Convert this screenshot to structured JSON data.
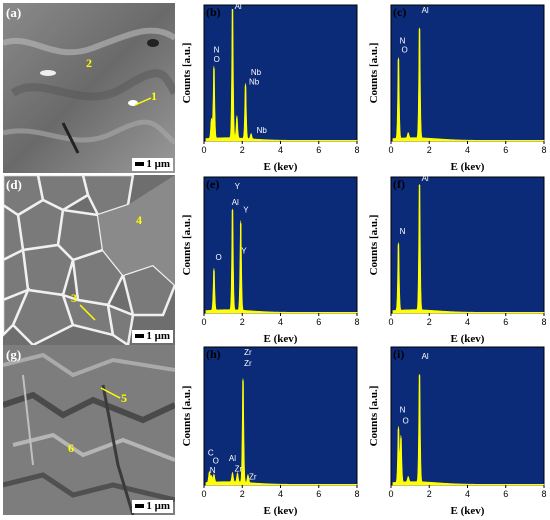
{
  "sem_panels": [
    {
      "label": "(a)",
      "scale": "1 μm",
      "markers": [
        {
          "text": "1"
        },
        {
          "text": "2"
        }
      ]
    },
    {
      "label": "(d)",
      "scale": "1 μm",
      "markers": [
        {
          "text": "3"
        },
        {
          "text": "4"
        }
      ]
    },
    {
      "label": "(g)",
      "scale": "1 μm",
      "markers": [
        {
          "text": "5"
        },
        {
          "text": "6"
        }
      ]
    }
  ],
  "colors": {
    "plot_bg": "#0b2a78",
    "spectrum": "#ffff00",
    "peak_label": "#ffffff"
  },
  "chart_data": [
    {
      "type": "area",
      "label": "(b)",
      "xlabel": "E (kev)",
      "ylabel": "Counts [a.u.]",
      "xlim": [
        0,
        8
      ],
      "ylim": [
        0,
        1
      ],
      "xticks": [
        0,
        2,
        4,
        6,
        8
      ],
      "peaks": [
        {
          "x": 0.39,
          "y": 0.15
        },
        {
          "x": 0.52,
          "y": 0.55
        },
        {
          "x": 1.49,
          "y": 1.0
        },
        {
          "x": 1.72,
          "y": 0.17
        },
        {
          "x": 2.17,
          "y": 0.42
        },
        {
          "x": 2.46,
          "y": 0.04
        }
      ],
      "peak_labels": [
        {
          "text": "N",
          "x": 0.5,
          "y": 0.67
        },
        {
          "text": "O",
          "x": 0.5,
          "y": 0.6
        },
        {
          "text": "Al",
          "x": 1.6,
          "y": 1.0
        },
        {
          "text": "Nb",
          "x": 2.45,
          "y": 0.5
        },
        {
          "text": "Nb",
          "x": 2.35,
          "y": 0.43
        },
        {
          "text": "Nb",
          "x": 2.75,
          "y": 0.06
        }
      ]
    },
    {
      "type": "area",
      "label": "(c)",
      "xlabel": "E (kev)",
      "ylabel": "Counts [a.u.]",
      "xlim": [
        0,
        8
      ],
      "ylim": [
        0,
        1
      ],
      "xticks": [
        0,
        2,
        4,
        6,
        8
      ],
      "peaks": [
        {
          "x": 0.39,
          "y": 0.62
        },
        {
          "x": 0.9,
          "y": 0.04
        },
        {
          "x": 1.49,
          "y": 0.85
        }
      ],
      "peak_labels": [
        {
          "text": "N",
          "x": 0.45,
          "y": 0.74
        },
        {
          "text": "O",
          "x": 0.55,
          "y": 0.67
        },
        {
          "text": "Al",
          "x": 1.6,
          "y": 0.97
        }
      ]
    },
    {
      "type": "area",
      "label": "(e)",
      "xlabel": "E (kev)",
      "ylabel": "Counts [a.u.]",
      "xlim": [
        0,
        8
      ],
      "ylim": [
        0,
        1
      ],
      "xticks": [
        0,
        2,
        4,
        6,
        8
      ],
      "peaks": [
        {
          "x": 0.52,
          "y": 0.32
        },
        {
          "x": 1.49,
          "y": 0.78
        },
        {
          "x": 1.92,
          "y": 0.68
        }
      ],
      "peak_labels": [
        {
          "text": "O",
          "x": 0.6,
          "y": 0.4
        },
        {
          "text": "Y",
          "x": 1.6,
          "y": 0.94
        },
        {
          "text": "Al",
          "x": 1.45,
          "y": 0.82
        },
        {
          "text": "Y",
          "x": 2.05,
          "y": 0.76
        },
        {
          "text": "Y",
          "x": 1.95,
          "y": 0.45
        }
      ]
    },
    {
      "type": "area",
      "label": "(f)",
      "xlabel": "E (kev)",
      "ylabel": "Counts [a.u.]",
      "xlim": [
        0,
        8
      ],
      "ylim": [
        0,
        1
      ],
      "xticks": [
        0,
        2,
        4,
        6,
        8
      ],
      "peaks": [
        {
          "x": 0.39,
          "y": 0.52
        },
        {
          "x": 1.49,
          "y": 0.97
        }
      ],
      "peak_labels": [
        {
          "text": "N",
          "x": 0.45,
          "y": 0.6
        },
        {
          "text": "Al",
          "x": 1.6,
          "y": 1.0
        }
      ]
    },
    {
      "type": "area",
      "label": "(h)",
      "xlabel": "E (kev)",
      "ylabel": "Counts [a.u.]",
      "xlim": [
        0,
        8
      ],
      "ylim": [
        0,
        1
      ],
      "xticks": [
        0,
        2,
        4,
        6,
        8
      ],
      "peaks": [
        {
          "x": 0.28,
          "y": 0.08
        },
        {
          "x": 0.39,
          "y": 0.05
        },
        {
          "x": 0.52,
          "y": 0.06
        },
        {
          "x": 1.49,
          "y": 0.07
        },
        {
          "x": 1.75,
          "y": 0.07
        },
        {
          "x": 2.04,
          "y": 0.78
        },
        {
          "x": 2.3,
          "y": 0.06
        }
      ],
      "peak_labels": [
        {
          "text": "Zr",
          "x": 2.1,
          "y": 0.97
        },
        {
          "text": "Zr",
          "x": 2.1,
          "y": 0.89
        },
        {
          "text": "C",
          "x": 0.2,
          "y": 0.22
        },
        {
          "text": "O",
          "x": 0.45,
          "y": 0.16
        },
        {
          "text": "N",
          "x": 0.3,
          "y": 0.09
        },
        {
          "text": "Al",
          "x": 1.3,
          "y": 0.18
        },
        {
          "text": "Zr",
          "x": 1.6,
          "y": 0.1
        },
        {
          "text": "Zr",
          "x": 2.35,
          "y": 0.04
        }
      ]
    },
    {
      "type": "area",
      "label": "(i)",
      "xlabel": "E (kev)",
      "ylabel": "Counts [a.u.]",
      "xlim": [
        0,
        8
      ],
      "ylim": [
        0,
        1
      ],
      "xticks": [
        0,
        2,
        4,
        6,
        8
      ],
      "peaks": [
        {
          "x": 0.39,
          "y": 0.42
        },
        {
          "x": 0.52,
          "y": 0.35
        },
        {
          "x": 0.9,
          "y": 0.04
        },
        {
          "x": 1.49,
          "y": 0.82
        }
      ],
      "peak_labels": [
        {
          "text": "N",
          "x": 0.45,
          "y": 0.54
        },
        {
          "text": "O",
          "x": 0.6,
          "y": 0.46
        },
        {
          "text": "Al",
          "x": 1.6,
          "y": 0.94
        }
      ]
    }
  ]
}
